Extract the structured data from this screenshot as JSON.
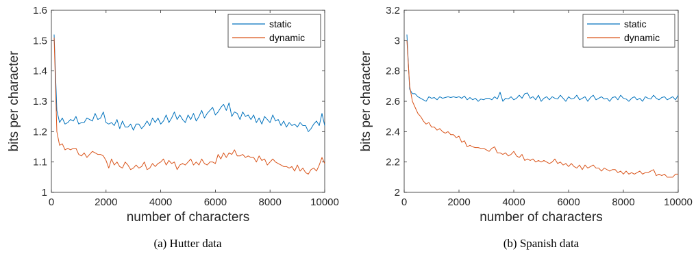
{
  "chart_data": [
    {
      "type": "line",
      "caption": "(a) Hutter data",
      "xlabel": "number of characters",
      "ylabel": "bits per character",
      "xlim": [
        0,
        10000
      ],
      "ylim": [
        1,
        1.6
      ],
      "xticks": [
        0,
        2000,
        4000,
        6000,
        8000,
        10000
      ],
      "yticks": [
        1,
        1.1,
        1.2,
        1.3,
        1.4,
        1.5,
        1.6
      ],
      "ytick_labels": [
        "1",
        "1.1",
        "1.2",
        "1.3",
        "1.4",
        "1.5",
        "1.6"
      ],
      "grid": false,
      "legend": "top-right",
      "series": [
        {
          "name": "static",
          "color": "#0072BD",
          "x": [
            100,
            200,
            300,
            400,
            500,
            600,
            700,
            800,
            900,
            1000,
            1100,
            1200,
            1300,
            1400,
            1500,
            1600,
            1700,
            1800,
            1900,
            2000,
            2100,
            2200,
            2300,
            2400,
            2500,
            2600,
            2700,
            2800,
            2900,
            3000,
            3100,
            3200,
            3300,
            3400,
            3500,
            3600,
            3700,
            3800,
            3900,
            4000,
            4100,
            4200,
            4300,
            4400,
            4500,
            4600,
            4700,
            4800,
            4900,
            5000,
            5100,
            5200,
            5300,
            5400,
            5500,
            5600,
            5700,
            5800,
            5900,
            6000,
            6100,
            6200,
            6300,
            6400,
            6500,
            6600,
            6700,
            6800,
            6900,
            7000,
            7100,
            7200,
            7300,
            7400,
            7500,
            7600,
            7700,
            7800,
            7900,
            8000,
            8100,
            8200,
            8300,
            8400,
            8500,
            8600,
            8700,
            8800,
            8900,
            9000,
            9100,
            9200,
            9300,
            9400,
            9500,
            9600,
            9700,
            9800,
            9900,
            10000
          ],
          "y": [
            1.52,
            1.27,
            1.23,
            1.245,
            1.225,
            1.23,
            1.24,
            1.235,
            1.25,
            1.225,
            1.23,
            1.23,
            1.245,
            1.24,
            1.235,
            1.26,
            1.24,
            1.245,
            1.265,
            1.23,
            1.225,
            1.23,
            1.22,
            1.24,
            1.21,
            1.235,
            1.215,
            1.215,
            1.225,
            1.205,
            1.225,
            1.225,
            1.21,
            1.22,
            1.235,
            1.22,
            1.245,
            1.23,
            1.245,
            1.225,
            1.235,
            1.255,
            1.23,
            1.245,
            1.265,
            1.24,
            1.255,
            1.24,
            1.23,
            1.255,
            1.24,
            1.26,
            1.235,
            1.25,
            1.27,
            1.245,
            1.26,
            1.27,
            1.28,
            1.255,
            1.265,
            1.28,
            1.29,
            1.27,
            1.295,
            1.25,
            1.265,
            1.26,
            1.24,
            1.265,
            1.25,
            1.255,
            1.24,
            1.255,
            1.23,
            1.245,
            1.225,
            1.25,
            1.24,
            1.23,
            1.255,
            1.235,
            1.24,
            1.22,
            1.235,
            1.215,
            1.23,
            1.22,
            1.225,
            1.215,
            1.23,
            1.22,
            1.22,
            1.2,
            1.21,
            1.225,
            1.235,
            1.22,
            1.26,
            1.22
          ]
        },
        {
          "name": "dynamic",
          "color": "#D95319",
          "x": [
            100,
            200,
            300,
            400,
            500,
            600,
            700,
            800,
            900,
            1000,
            1100,
            1200,
            1300,
            1400,
            1500,
            1600,
            1700,
            1800,
            1900,
            2000,
            2100,
            2200,
            2300,
            2400,
            2500,
            2600,
            2700,
            2800,
            2900,
            3000,
            3100,
            3200,
            3300,
            3400,
            3500,
            3600,
            3700,
            3800,
            3900,
            4000,
            4100,
            4200,
            4300,
            4400,
            4500,
            4600,
            4700,
            4800,
            4900,
            5000,
            5100,
            5200,
            5300,
            5400,
            5500,
            5600,
            5700,
            5800,
            5900,
            6000,
            6100,
            6200,
            6300,
            6400,
            6500,
            6600,
            6700,
            6800,
            6900,
            7000,
            7100,
            7200,
            7300,
            7400,
            7500,
            7600,
            7700,
            7800,
            7900,
            8000,
            8100,
            8200,
            8300,
            8400,
            8500,
            8600,
            8700,
            8800,
            8900,
            9000,
            9100,
            9200,
            9300,
            9400,
            9500,
            9600,
            9700,
            9800,
            9900,
            10000
          ],
          "y": [
            1.51,
            1.2,
            1.155,
            1.16,
            1.14,
            1.145,
            1.14,
            1.145,
            1.145,
            1.125,
            1.12,
            1.13,
            1.115,
            1.125,
            1.135,
            1.13,
            1.125,
            1.125,
            1.12,
            1.105,
            1.08,
            1.11,
            1.09,
            1.1,
            1.085,
            1.08,
            1.1,
            1.09,
            1.075,
            1.08,
            1.09,
            1.08,
            1.085,
            1.1,
            1.075,
            1.08,
            1.095,
            1.085,
            1.095,
            1.1,
            1.11,
            1.09,
            1.105,
            1.095,
            1.1,
            1.075,
            1.09,
            1.095,
            1.09,
            1.1,
            1.11,
            1.09,
            1.1,
            1.09,
            1.11,
            1.095,
            1.09,
            1.1,
            1.1,
            1.095,
            1.125,
            1.11,
            1.13,
            1.115,
            1.13,
            1.125,
            1.14,
            1.12,
            1.12,
            1.125,
            1.115,
            1.12,
            1.115,
            1.115,
            1.1,
            1.12,
            1.105,
            1.11,
            1.09,
            1.1,
            1.11,
            1.1,
            1.095,
            1.09,
            1.085,
            1.085,
            1.08,
            1.085,
            1.07,
            1.09,
            1.07,
            1.08,
            1.065,
            1.06,
            1.075,
            1.08,
            1.07,
            1.09,
            1.115,
            1.095
          ]
        }
      ]
    },
    {
      "type": "line",
      "caption": "(b) Spanish data",
      "xlabel": "number of characters",
      "ylabel": "bits per character",
      "xlim": [
        0,
        10000
      ],
      "ylim": [
        2,
        3.2
      ],
      "xticks": [
        0,
        2000,
        4000,
        6000,
        8000,
        10000
      ],
      "yticks": [
        2,
        2.2,
        2.4,
        2.6,
        2.8,
        3,
        3.2
      ],
      "ytick_labels": [
        "2",
        "2.2",
        "2.4",
        "2.6",
        "2.8",
        "3",
        "3.2"
      ],
      "grid": false,
      "legend": "top-right",
      "series": [
        {
          "name": "static",
          "color": "#0072BD",
          "x": [
            100,
            200,
            300,
            400,
            500,
            600,
            700,
            800,
            900,
            1000,
            1100,
            1200,
            1300,
            1400,
            1500,
            1600,
            1700,
            1800,
            1900,
            2000,
            2100,
            2200,
            2300,
            2400,
            2500,
            2600,
            2700,
            2800,
            2900,
            3000,
            3100,
            3200,
            3300,
            3400,
            3500,
            3600,
            3700,
            3800,
            3900,
            4000,
            4100,
            4200,
            4300,
            4400,
            4500,
            4600,
            4700,
            4800,
            4900,
            5000,
            5100,
            5200,
            5300,
            5400,
            5500,
            5600,
            5700,
            5800,
            5900,
            6000,
            6100,
            6200,
            6300,
            6400,
            6500,
            6600,
            6700,
            6800,
            6900,
            7000,
            7100,
            7200,
            7300,
            7400,
            7500,
            7600,
            7700,
            7800,
            7900,
            8000,
            8100,
            8200,
            8300,
            8400,
            8500,
            8600,
            8700,
            8800,
            8900,
            9000,
            9100,
            9200,
            9300,
            9400,
            9500,
            9600,
            9700,
            9800,
            9900,
            10000
          ],
          "y": [
            3.04,
            2.68,
            2.65,
            2.65,
            2.63,
            2.62,
            2.61,
            2.6,
            2.63,
            2.62,
            2.625,
            2.61,
            2.63,
            2.62,
            2.625,
            2.63,
            2.625,
            2.63,
            2.625,
            2.63,
            2.62,
            2.635,
            2.61,
            2.625,
            2.61,
            2.62,
            2.6,
            2.615,
            2.61,
            2.62,
            2.62,
            2.61,
            2.63,
            2.615,
            2.66,
            2.6,
            2.62,
            2.615,
            2.63,
            2.61,
            2.62,
            2.64,
            2.62,
            2.65,
            2.655,
            2.62,
            2.63,
            2.61,
            2.64,
            2.6,
            2.62,
            2.63,
            2.61,
            2.63,
            2.62,
            2.615,
            2.64,
            2.62,
            2.6,
            2.63,
            2.615,
            2.62,
            2.64,
            2.61,
            2.62,
            2.63,
            2.6,
            2.625,
            2.64,
            2.61,
            2.62,
            2.63,
            2.615,
            2.62,
            2.6,
            2.625,
            2.63,
            2.61,
            2.64,
            2.62,
            2.615,
            2.6,
            2.62,
            2.63,
            2.61,
            2.62,
            2.6,
            2.63,
            2.62,
            2.615,
            2.64,
            2.62,
            2.61,
            2.625,
            2.63,
            2.61,
            2.62,
            2.63,
            2.61,
            2.64
          ]
        },
        {
          "name": "dynamic",
          "color": "#D95319",
          "x": [
            100,
            200,
            300,
            400,
            500,
            600,
            700,
            800,
            900,
            1000,
            1100,
            1200,
            1300,
            1400,
            1500,
            1600,
            1700,
            1800,
            1900,
            2000,
            2100,
            2200,
            2300,
            2400,
            2500,
            2600,
            2700,
            2800,
            2900,
            3000,
            3100,
            3200,
            3300,
            3400,
            3500,
            3600,
            3700,
            3800,
            3900,
            4000,
            4100,
            4200,
            4300,
            4400,
            4500,
            4600,
            4700,
            4800,
            4900,
            5000,
            5100,
            5200,
            5300,
            5400,
            5500,
            5600,
            5700,
            5800,
            5900,
            6000,
            6100,
            6200,
            6300,
            6400,
            6500,
            6600,
            6700,
            6800,
            6900,
            7000,
            7100,
            7200,
            7300,
            7400,
            7500,
            7600,
            7700,
            7800,
            7900,
            8000,
            8100,
            8200,
            8300,
            8400,
            8500,
            8600,
            8700,
            8800,
            8900,
            9000,
            9100,
            9200,
            9300,
            9400,
            9500,
            9600,
            9700,
            9800,
            9900,
            10000
          ],
          "y": [
            3.0,
            2.7,
            2.6,
            2.56,
            2.52,
            2.5,
            2.47,
            2.45,
            2.46,
            2.43,
            2.43,
            2.41,
            2.42,
            2.4,
            2.39,
            2.4,
            2.38,
            2.38,
            2.36,
            2.37,
            2.33,
            2.34,
            2.3,
            2.31,
            2.3,
            2.295,
            2.295,
            2.29,
            2.29,
            2.28,
            2.27,
            2.29,
            2.3,
            2.26,
            2.26,
            2.25,
            2.26,
            2.24,
            2.25,
            2.27,
            2.24,
            2.23,
            2.25,
            2.21,
            2.22,
            2.21,
            2.22,
            2.2,
            2.21,
            2.2,
            2.21,
            2.2,
            2.19,
            2.2,
            2.22,
            2.19,
            2.2,
            2.18,
            2.19,
            2.17,
            2.19,
            2.17,
            2.16,
            2.18,
            2.15,
            2.18,
            2.16,
            2.17,
            2.18,
            2.16,
            2.16,
            2.14,
            2.16,
            2.15,
            2.14,
            2.15,
            2.15,
            2.13,
            2.14,
            2.12,
            2.14,
            2.12,
            2.13,
            2.12,
            2.13,
            2.14,
            2.12,
            2.13,
            2.13,
            2.14,
            2.15,
            2.11,
            2.12,
            2.11,
            2.12,
            2.1,
            2.1,
            2.1,
            2.12,
            2.12
          ]
        }
      ]
    }
  ]
}
